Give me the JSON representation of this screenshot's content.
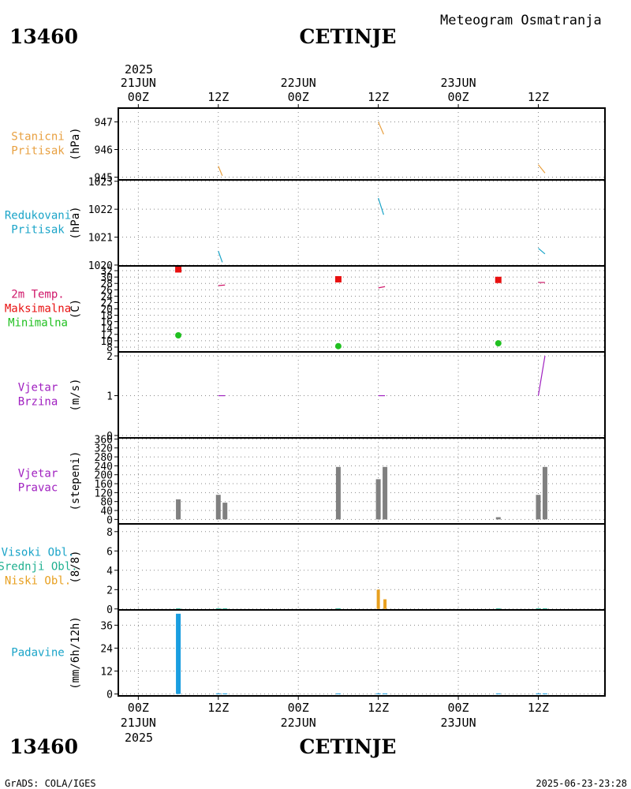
{
  "header": {
    "station_id": "13460",
    "station_name": "CETINJE",
    "product_title": "Meteogram Osmatranja"
  },
  "footer": {
    "credit": "GrADS: COLA/IGES",
    "timestamp": "2025-06-23-23:28"
  },
  "time_axis": {
    "year": "2025",
    "ticks": [
      {
        "hour": 0,
        "top": "00Z",
        "date": "21JUN"
      },
      {
        "hour": 12,
        "top": "12Z",
        "date": ""
      },
      {
        "hour": 24,
        "top": "00Z",
        "date": "22JUN"
      },
      {
        "hour": 36,
        "top": "12Z",
        "date": ""
      },
      {
        "hour": 48,
        "top": "00Z",
        "date": "23JUN"
      },
      {
        "hour": 60,
        "top": "12Z",
        "date": ""
      }
    ],
    "range_hours": [
      -3,
      70
    ]
  },
  "chart_data": [
    {
      "type": "line",
      "title_lines": [
        "Stanicni",
        "Pritisak"
      ],
      "ylabel": "(hPa)",
      "title_color": "#e8a040",
      "series_color": "#e8a040",
      "ylim": [
        944.9,
        947.5
      ],
      "yticks": [
        945,
        946,
        947
      ],
      "segments": [
        [
          [
            12,
            945.4
          ],
          [
            12.6,
            945.05
          ]
        ],
        [
          [
            36,
            947.0
          ],
          [
            36.8,
            946.55
          ]
        ],
        [
          [
            60,
            945.45
          ],
          [
            61,
            945.15
          ]
        ]
      ]
    },
    {
      "type": "line",
      "title_lines": [
        "Redukovani",
        "Pritisak"
      ],
      "ylabel": "(hPa)",
      "title_color": "#1aa4c8",
      "series_color": "#1aa4c8",
      "ylim": [
        1019.97,
        1023.05
      ],
      "yticks": [
        1020,
        1021,
        1022,
        1023
      ],
      "segments": [
        [
          [
            12,
            1020.5
          ],
          [
            12.6,
            1020.1
          ]
        ],
        [
          [
            36,
            1022.4
          ],
          [
            36.8,
            1021.8
          ]
        ],
        [
          [
            60,
            1020.6
          ],
          [
            61,
            1020.4
          ]
        ]
      ]
    },
    {
      "type": "scatter",
      "title_lines": [
        "2m Temp.",
        "Maksimalna",
        "Minimalna"
      ],
      "title_colors": [
        "#d0186a",
        "#e81010",
        "#20c020"
      ],
      "ylabel": "(C)",
      "ylim": [
        6.5,
        33.5
      ],
      "yticks": [
        8,
        10,
        12,
        14,
        16,
        18,
        20,
        22,
        24,
        26,
        28,
        30,
        32
      ],
      "temperature_color": "#d0186a",
      "max_color": "#e81010",
      "min_color": "#20c020",
      "temperature": [
        [
          [
            12,
            27.3
          ],
          [
            13,
            27.5
          ]
        ],
        [
          [
            36,
            26.6
          ],
          [
            37,
            27.0
          ]
        ],
        [
          [
            60,
            28.3
          ],
          [
            61,
            28.3
          ]
        ]
      ],
      "maximum": [
        [
          6,
          32.4
        ],
        [
          30,
          29.3
        ],
        [
          54,
          29.1
        ]
      ],
      "minimum": [
        [
          6,
          11.7
        ],
        [
          30,
          8.3
        ],
        [
          54,
          9.2
        ]
      ]
    },
    {
      "type": "line",
      "title_lines": [
        "Vjetar",
        "Brzina"
      ],
      "ylabel": "(m/s)",
      "title_color": "#a020c0",
      "series_color": "#a020c0",
      "ylim": [
        -0.06,
        2.1
      ],
      "yticks": [
        0,
        1,
        2
      ],
      "segments": [
        [
          [
            12,
            1.0
          ],
          [
            13,
            1.0
          ]
        ],
        [
          [
            36,
            1.0
          ],
          [
            37,
            1.0
          ]
        ],
        [
          [
            60,
            1.0
          ],
          [
            61,
            2.0
          ]
        ]
      ]
    },
    {
      "type": "bar",
      "title_lines": [
        "Vjetar",
        "Pravac"
      ],
      "ylabel": "(stepeni)",
      "title_color": "#a020c0",
      "bar_color": "#808080",
      "ylim": [
        -20,
        365
      ],
      "yticks": [
        0,
        40,
        80,
        120,
        160,
        200,
        240,
        280,
        320,
        360
      ],
      "bars": [
        {
          "hour": 6,
          "value": 90
        },
        {
          "hour": 12,
          "value": 110
        },
        {
          "hour": 13,
          "value": 75
        },
        {
          "hour": 30,
          "value": 235
        },
        {
          "hour": 36,
          "value": 180
        },
        {
          "hour": 37,
          "value": 235
        },
        {
          "hour": 54,
          "value": 10
        },
        {
          "hour": 60,
          "value": 110
        },
        {
          "hour": 61,
          "value": 235
        }
      ]
    },
    {
      "type": "bar",
      "title_lines": [
        "Visoki Obl.",
        "Srednji Obl.",
        "Niski Obl."
      ],
      "title_colors": [
        "#1aa4c8",
        "#20b090",
        "#e8a020"
      ],
      "ylabel": "(8/8)",
      "ylim": [
        -0.1,
        8.8
      ],
      "yticks": [
        0,
        2,
        4,
        6,
        8
      ],
      "low_color": "#e8a020",
      "mid_color": "#20b090",
      "high_color": "#1aa4c8",
      "low_cloud": [
        {
          "hour": 6,
          "value": 0
        },
        {
          "hour": 12,
          "value": 0
        },
        {
          "hour": 13,
          "value": 0
        },
        {
          "hour": 30,
          "value": 0
        },
        {
          "hour": 36,
          "value": 2
        },
        {
          "hour": 37,
          "value": 1
        },
        {
          "hour": 54,
          "value": 0
        },
        {
          "hour": 60,
          "value": 0
        },
        {
          "hour": 61,
          "value": 0
        }
      ]
    },
    {
      "type": "bar",
      "title_lines": [
        "Padavine"
      ],
      "ylabel": "(mm/6h/12h)",
      "title_color": "#1aa4c8",
      "bar_color": "#1a9ee0",
      "ylim": [
        -1,
        44
      ],
      "yticks": [
        0,
        12,
        24,
        36
      ],
      "bars": [
        {
          "hour": 6,
          "value": 42
        },
        {
          "hour": 12,
          "value": 0.3
        },
        {
          "hour": 13,
          "value": 0.3
        },
        {
          "hour": 30,
          "value": 0.3
        },
        {
          "hour": 36,
          "value": 0.3
        },
        {
          "hour": 37,
          "value": 0.3
        },
        {
          "hour": 54,
          "value": 0.3
        },
        {
          "hour": 60,
          "value": 0.3
        },
        {
          "hour": 61,
          "value": 0.3
        }
      ]
    }
  ]
}
